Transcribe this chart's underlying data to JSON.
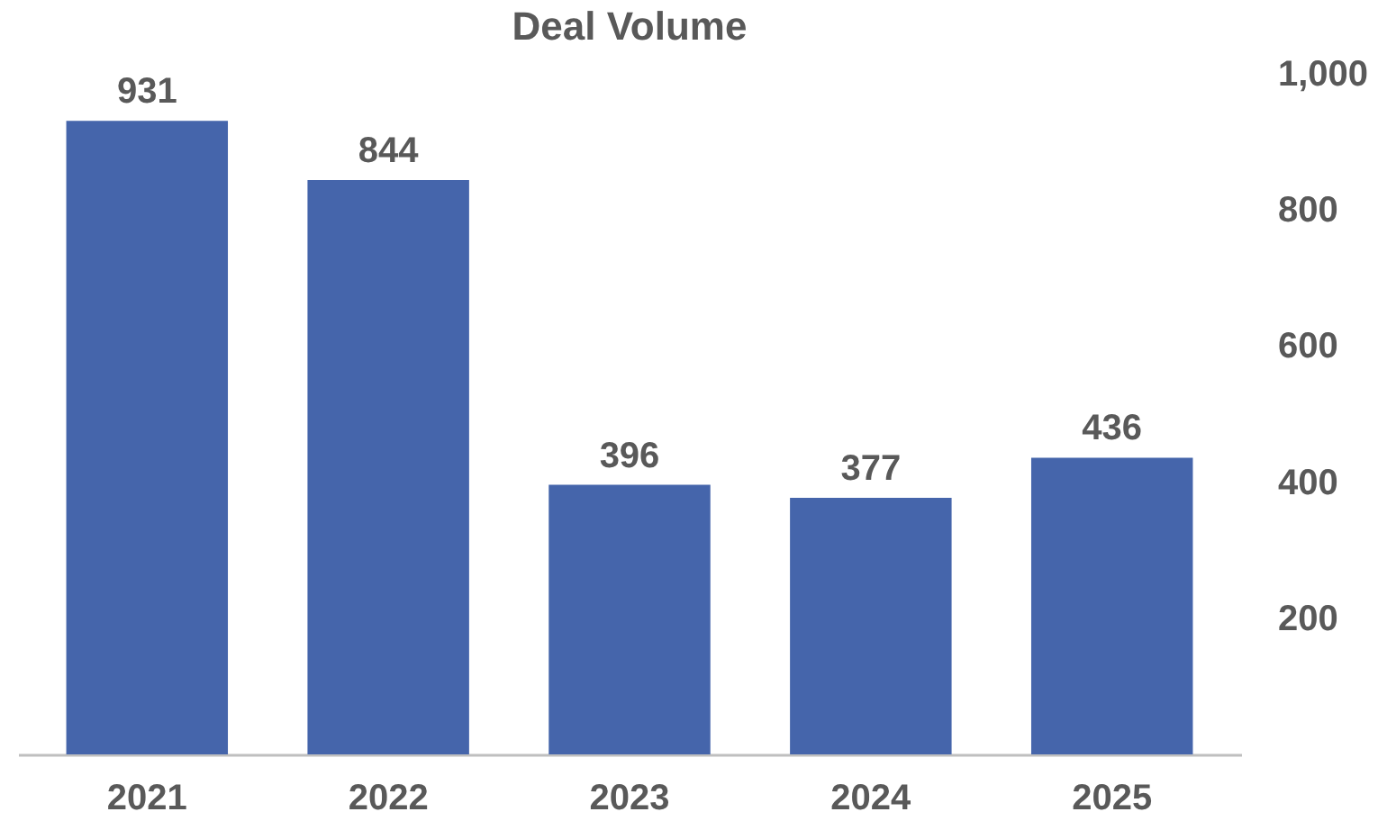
{
  "chart_data": {
    "type": "bar",
    "title": "Deal Volume",
    "categories": [
      "2021",
      "2022",
      "2023",
      "2024",
      "2025"
    ],
    "values": [
      931,
      844,
      396,
      377,
      436
    ],
    "color": "#4565ab",
    "ylim": [
      0,
      1000
    ],
    "yticks": [
      200,
      400,
      600,
      800,
      {
        "value": 1000,
        "label": "1,000"
      }
    ],
    "data_labels": true,
    "grid": false
  }
}
